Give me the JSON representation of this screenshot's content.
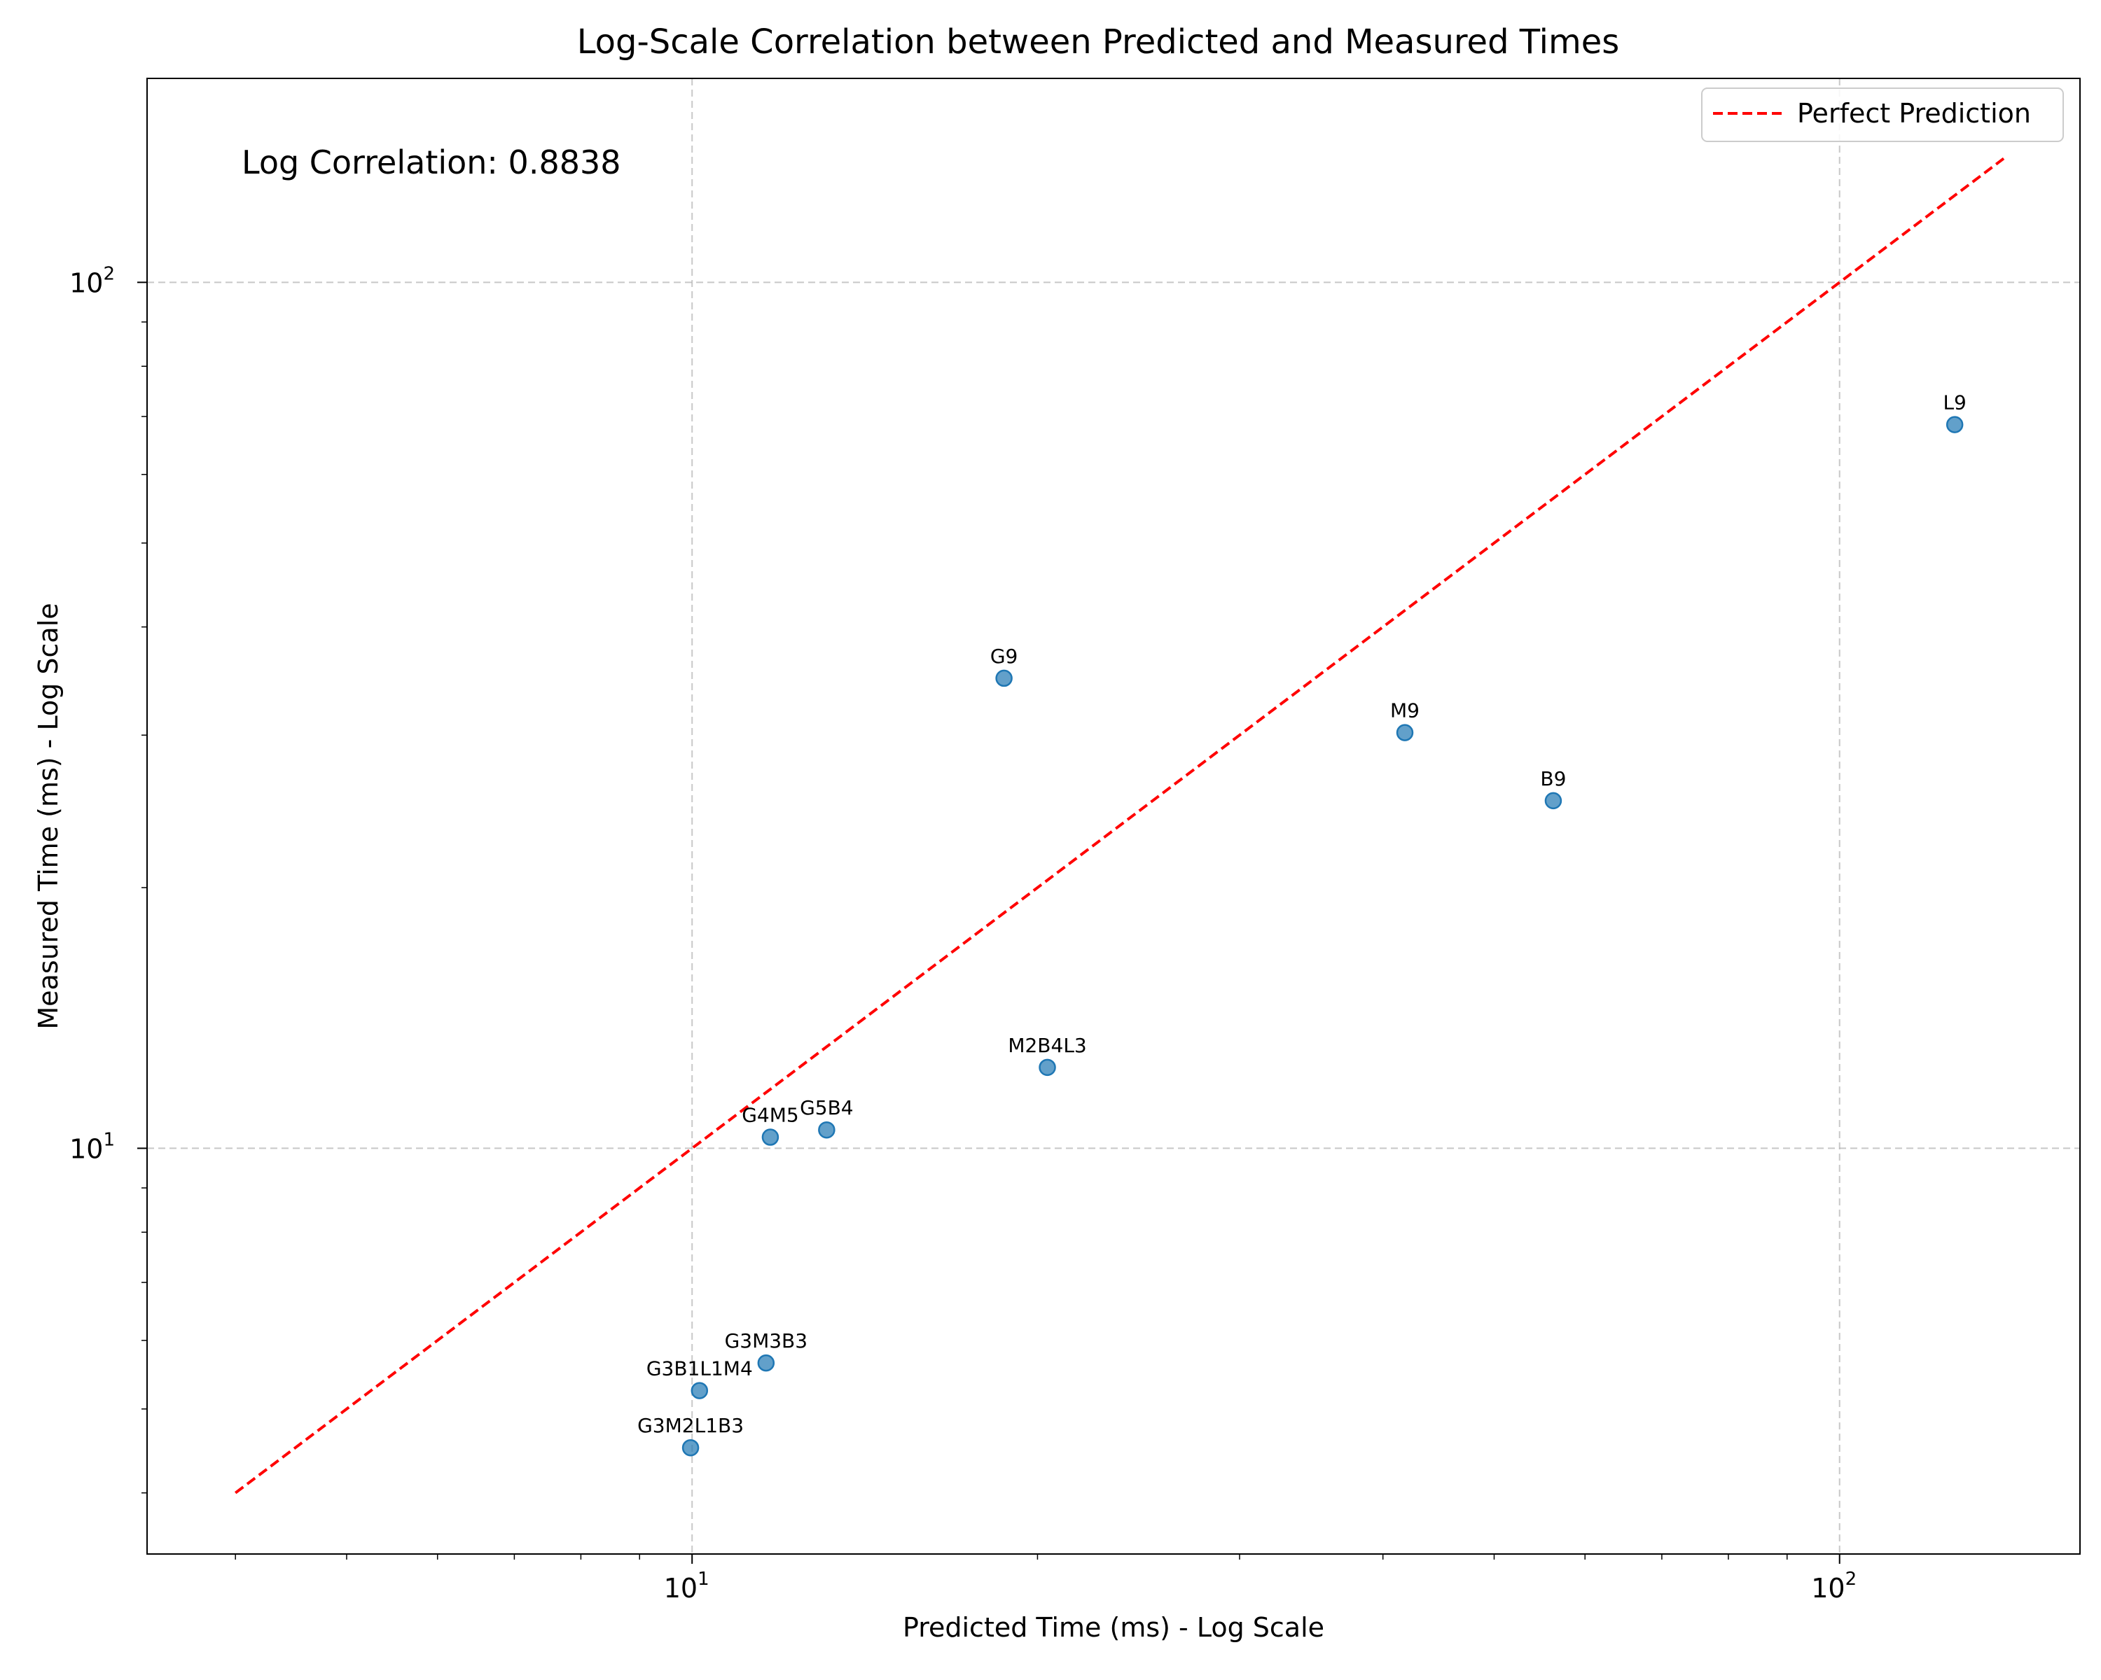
{
  "chart_data": {
    "type": "scatter",
    "title": "Log-Scale Correlation between Predicted and Measured Times",
    "xlabel": "Predicted Time (ms) - Log Scale",
    "ylabel": "Measured Time (ms) - Log Scale",
    "xscale": "log",
    "yscale": "log",
    "xlim": [
      3.35,
      162
    ],
    "ylim": [
      3.4,
      172
    ],
    "grid": true,
    "legend_position": "top-right",
    "annotation": "Log Correlation: 0.8838",
    "x_ticks": [
      {
        "value": 10,
        "base": "10",
        "exp": "1"
      },
      {
        "value": 100,
        "base": "10",
        "exp": "2"
      }
    ],
    "y_ticks": [
      {
        "value": 10,
        "base": "10",
        "exp": "1"
      },
      {
        "value": 100,
        "base": "10",
        "exp": "2"
      }
    ],
    "reference_line": {
      "name": "Perfect Prediction",
      "color": "#ff0000",
      "style": "dashed",
      "x": [
        4.0,
        139.0
      ],
      "y": [
        4.0,
        139.0
      ]
    },
    "points": [
      {
        "label": "L9",
        "x": 126.0,
        "y": 68.5
      },
      {
        "label": "G9",
        "x": 18.7,
        "y": 34.9
      },
      {
        "label": "M9",
        "x": 41.8,
        "y": 30.2
      },
      {
        "label": "B9",
        "x": 56.3,
        "y": 25.2
      },
      {
        "label": "M2B4L3",
        "x": 20.4,
        "y": 12.4
      },
      {
        "label": "G4M5",
        "x": 11.7,
        "y": 10.3
      },
      {
        "label": "G5B4",
        "x": 13.1,
        "y": 10.5
      },
      {
        "label": "G3M3B3",
        "x": 11.6,
        "y": 5.65
      },
      {
        "label": "G3B1L1M4",
        "x": 10.15,
        "y": 5.25
      },
      {
        "label": "G3M2L1B3",
        "x": 9.97,
        "y": 4.51
      }
    ],
    "point_color": "#1f77b4"
  }
}
